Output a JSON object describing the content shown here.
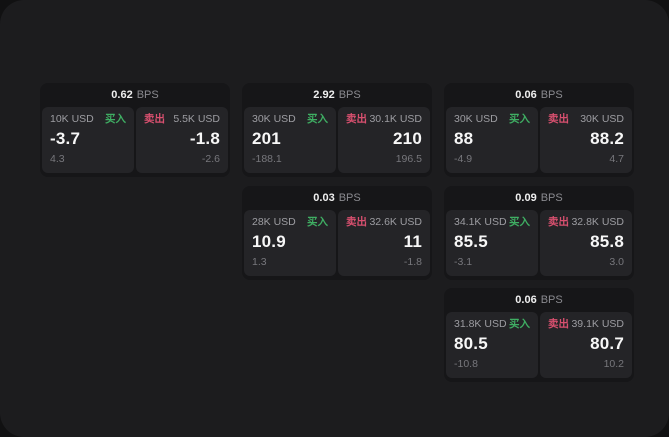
{
  "labels": {
    "bps_unit": "BPS",
    "buy": "买入",
    "sell": "卖出"
  },
  "colors": {
    "page_background": "#1c1c1e",
    "card_background": "#161618",
    "tile_background": "#242427",
    "buy_accent": "#3fae63",
    "sell_accent": "#d8506f",
    "primary_text": "#f7f7f7",
    "secondary_text": "#9d9da2",
    "muted_text": "#77777c"
  },
  "cards": [
    {
      "bps": "0.62",
      "buy": {
        "amount": "10K USD",
        "value": "-3.7",
        "sub": "4.3"
      },
      "sell": {
        "amount": "5.5K USD",
        "value": "-1.8",
        "sub": "-2.6"
      }
    },
    {
      "bps": "2.92",
      "buy": {
        "amount": "30K USD",
        "value": "201",
        "sub": "-188.1"
      },
      "sell": {
        "amount": "30.1K USD",
        "value": "210",
        "sub": "196.5"
      }
    },
    {
      "bps": "0.06",
      "buy": {
        "amount": "30K USD",
        "value": "88",
        "sub": "-4.9"
      },
      "sell": {
        "amount": "30K USD",
        "value": "88.2",
        "sub": "4.7"
      }
    },
    {
      "bps": "0.03",
      "buy": {
        "amount": "28K USD",
        "value": "10.9",
        "sub": "1.3"
      },
      "sell": {
        "amount": "32.6K USD",
        "value": "11",
        "sub": "-1.8"
      }
    },
    {
      "bps": "0.09",
      "buy": {
        "amount": "34.1K USD",
        "value": "85.5",
        "sub": "-3.1"
      },
      "sell": {
        "amount": "32.8K USD",
        "value": "85.8",
        "sub": "3.0"
      }
    },
    {
      "bps": "0.06",
      "buy": {
        "amount": "31.8K USD",
        "value": "80.5",
        "sub": "-10.8"
      },
      "sell": {
        "amount": "39.1K USD",
        "value": "80.7",
        "sub": "10.2"
      }
    }
  ]
}
